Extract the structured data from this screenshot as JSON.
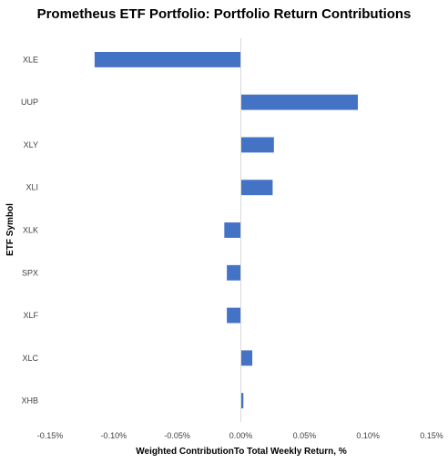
{
  "chart_data": {
    "type": "bar",
    "orientation": "horizontal",
    "title": "Prometheus ETF Portfolio: Portfolio Return Contributions",
    "xlabel": "Weighted ContributionTo Total Weekly Return, %",
    "ylabel": "ETF Symbol",
    "categories": [
      "XLE",
      "UUP",
      "XLY",
      "XLI",
      "XLK",
      "SPX",
      "XLF",
      "XLC",
      "XHB"
    ],
    "values": [
      -0.115,
      0.092,
      0.026,
      0.025,
      -0.013,
      -0.011,
      -0.011,
      0.009,
      0.002
    ],
    "xlim": [
      -0.15,
      0.15
    ],
    "xticks": [
      -0.15,
      -0.1,
      -0.05,
      0.0,
      0.05,
      0.1,
      0.15
    ],
    "xtick_labels": [
      "-0.15%",
      "-0.10%",
      "-0.05%",
      "0.00%",
      "0.05%",
      "0.10%",
      "0.15%"
    ],
    "bar_color": "#4472C4",
    "axis_color": "#D9D9D9",
    "grid": false,
    "legend": "none"
  }
}
